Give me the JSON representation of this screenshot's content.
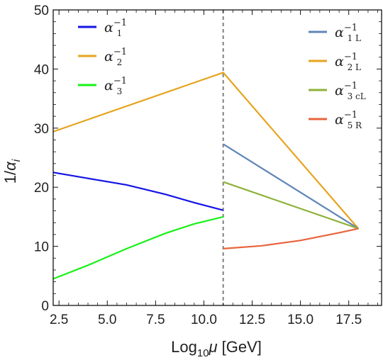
{
  "chart_data": {
    "type": "line",
    "xlabel_prefix": "Log",
    "xlabel_sub": "10",
    "xlabel_var": "μ",
    "xlabel_unit": "[GeV]",
    "ylabel_prefix": "1/",
    "ylabel_var": "α",
    "ylabel_sub": "i",
    "xlim": [
      2.2,
      19.2
    ],
    "ylim": [
      0,
      50
    ],
    "x_ticks": [
      2.5,
      5.0,
      7.5,
      10.0,
      12.5,
      15.0,
      17.5
    ],
    "x_tick_labels": [
      "2.5",
      "5.0",
      "7.5",
      "10.0",
      "12.5",
      "15.0",
      "17.5"
    ],
    "y_ticks": [
      0,
      10,
      20,
      30,
      40,
      50
    ],
    "y_tick_labels": [
      "0",
      "10",
      "20",
      "30",
      "40",
      "50"
    ],
    "vline_x": 11.0,
    "series": [
      {
        "name": "α₁⁻¹",
        "color": "#1414e6",
        "legend": "left",
        "label_base": "α",
        "label_sub": "1",
        "label_sup": "−1",
        "points": [
          [
            2.2,
            22.5
          ],
          [
            4.0,
            21.5
          ],
          [
            6.0,
            20.4
          ],
          [
            8.0,
            18.8
          ],
          [
            9.5,
            17.4
          ],
          [
            11.0,
            16.1
          ]
        ]
      },
      {
        "name": "α₂⁻¹",
        "color": "#e6a41e",
        "legend": "left",
        "label_base": "α",
        "label_sub": "2",
        "label_sup": "−1",
        "points": [
          [
            2.2,
            29.4
          ],
          [
            11.0,
            39.4
          ],
          [
            18.0,
            13.0
          ]
        ]
      },
      {
        "name": "α₃⁻¹",
        "color": "#19f019",
        "legend": "left",
        "label_base": "α",
        "label_sub": "3",
        "label_sup": "−1",
        "points": [
          [
            2.2,
            4.5
          ],
          [
            4.0,
            6.8
          ],
          [
            6.0,
            9.6
          ],
          [
            8.0,
            12.2
          ],
          [
            9.5,
            13.8
          ],
          [
            11.0,
            15.0
          ]
        ]
      },
      {
        "name": "α₁L⁻¹",
        "color": "#5f85b8",
        "legend": "right",
        "label_base": "α",
        "label_sub": "1 L",
        "label_sup": "−1",
        "points": [
          [
            11.0,
            27.3
          ],
          [
            18.0,
            13.0
          ]
        ]
      },
      {
        "name": "α₂L⁻¹",
        "color": "#e6a41e",
        "legend": "right",
        "label_base": "α",
        "label_sub": "2 L",
        "label_sup": "−1",
        "points": []
      },
      {
        "name": "α₃cL⁻¹",
        "color": "#8fb23a",
        "legend": "right",
        "label_base": "α",
        "label_sub": "3 cL",
        "label_sup": "−1",
        "points": [
          [
            11.0,
            20.9
          ],
          [
            18.0,
            13.0
          ]
        ]
      },
      {
        "name": "α₅R⁻¹",
        "color": "#e8643c",
        "legend": "right",
        "label_base": "α",
        "label_sub": "5 R",
        "label_sup": "−1",
        "points": [
          [
            11.0,
            9.6
          ],
          [
            13.0,
            10.1
          ],
          [
            15.0,
            11.0
          ],
          [
            17.0,
            12.3
          ],
          [
            18.0,
            13.0
          ]
        ]
      }
    ],
    "grid": false,
    "legend_placement": "top-left and top-right"
  }
}
